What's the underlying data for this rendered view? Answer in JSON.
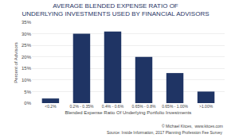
{
  "chart_data": {
    "type": "bar",
    "title": "AVERAGE BLENDED EXPENSE RATIO OF\nUNDERLYING INVESTMENTS USED BY FINANCIAL ADVISORS",
    "categories": [
      "<0.2%",
      "0.2% - 0.35%",
      "0.4% - 0.6%",
      "0.65% - 0.8%",
      "0.65% - 1.00%",
      ">1.00%"
    ],
    "values": [
      2,
      30,
      31,
      20,
      13,
      5
    ],
    "color": "#1f3464",
    "x_label": "Blended Expense Ratio Of Underlying Portfolio Investments",
    "y_label": "Percent of Advisors",
    "ylim": [
      0,
      35
    ],
    "yticks": [
      {
        "value": 0,
        "label": "0%"
      },
      {
        "value": 5,
        "label": "5%"
      },
      {
        "value": 10,
        "label": "10%"
      },
      {
        "value": 15,
        "label": "15%"
      },
      {
        "value": 20,
        "label": "20%"
      },
      {
        "value": 25,
        "label": "25%"
      },
      {
        "value": 30,
        "label": "30%"
      },
      {
        "value": 35,
        "label": "35%"
      }
    ],
    "grid": true,
    "annotations": [
      "© Michael Kitces,  www.kitces.com",
      "Source: Inside Information, 2017 Planning Profession Fee Survey"
    ]
  }
}
